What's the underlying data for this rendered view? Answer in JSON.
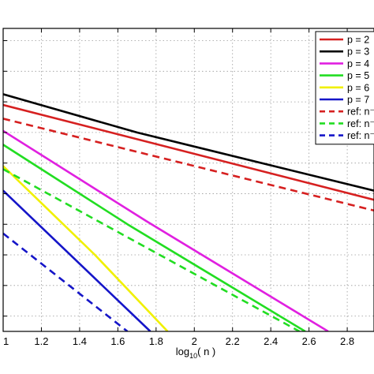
{
  "chart_data": {
    "type": "line",
    "title": "",
    "xlabel": "log",
    "xlabel_sub": "10",
    "xlabel_rest": "( n )",
    "ylabel": "",
    "xlim": [
      1.0,
      2.94
    ],
    "ylim": [
      -10.5,
      -0.6
    ],
    "x_ticks": [
      "1",
      "1.2",
      "1.4",
      "1.6",
      "1.8",
      "2",
      "2.2",
      "2.4",
      "2.6",
      "2.8"
    ],
    "grid": true,
    "legend_position": "top-right",
    "series": [
      {
        "name": "p = 2",
        "color": "#d62020",
        "dash": "solid",
        "points": [
          [
            1.0,
            -3.1
          ],
          [
            2.94,
            -6.2
          ]
        ]
      },
      {
        "name": "p = 3",
        "color": "#000000",
        "dash": "solid",
        "points": [
          [
            1.0,
            -2.75
          ],
          [
            1.7,
            -4.0
          ],
          [
            2.94,
            -5.9
          ]
        ]
      },
      {
        "name": "p = 4",
        "color": "#e020e0",
        "dash": "solid",
        "points": [
          [
            1.0,
            -3.95
          ],
          [
            1.75,
            -6.9
          ],
          [
            2.7,
            -10.5
          ]
        ]
      },
      {
        "name": "p = 5",
        "color": "#22dd22",
        "dash": "solid",
        "points": [
          [
            1.0,
            -4.4
          ],
          [
            1.65,
            -7.0
          ],
          [
            2.58,
            -10.5
          ]
        ]
      },
      {
        "name": "p = 6",
        "color": "#f0f000",
        "dash": "solid",
        "points": [
          [
            1.0,
            -5.1
          ],
          [
            1.48,
            -8.0
          ],
          [
            1.86,
            -10.5
          ]
        ]
      },
      {
        "name": "p = 7",
        "color": "#1515c8",
        "dash": "solid",
        "points": [
          [
            1.0,
            -5.9
          ],
          [
            1.77,
            -10.5
          ]
        ]
      },
      {
        "name": "ref: n⁻",
        "color": "#d62020",
        "dash": "dashed",
        "points": [
          [
            1.0,
            -3.55
          ],
          [
            2.94,
            -6.55
          ]
        ]
      },
      {
        "name": "ref: n⁻",
        "color": "#22dd22",
        "dash": "dashed",
        "points": [
          [
            1.0,
            -5.2
          ],
          [
            2.55,
            -10.5
          ]
        ]
      },
      {
        "name": "ref: n⁻",
        "color": "#1515c8",
        "dash": "dashed",
        "points": [
          [
            1.0,
            -7.3
          ],
          [
            1.65,
            -10.5
          ]
        ]
      }
    ]
  }
}
